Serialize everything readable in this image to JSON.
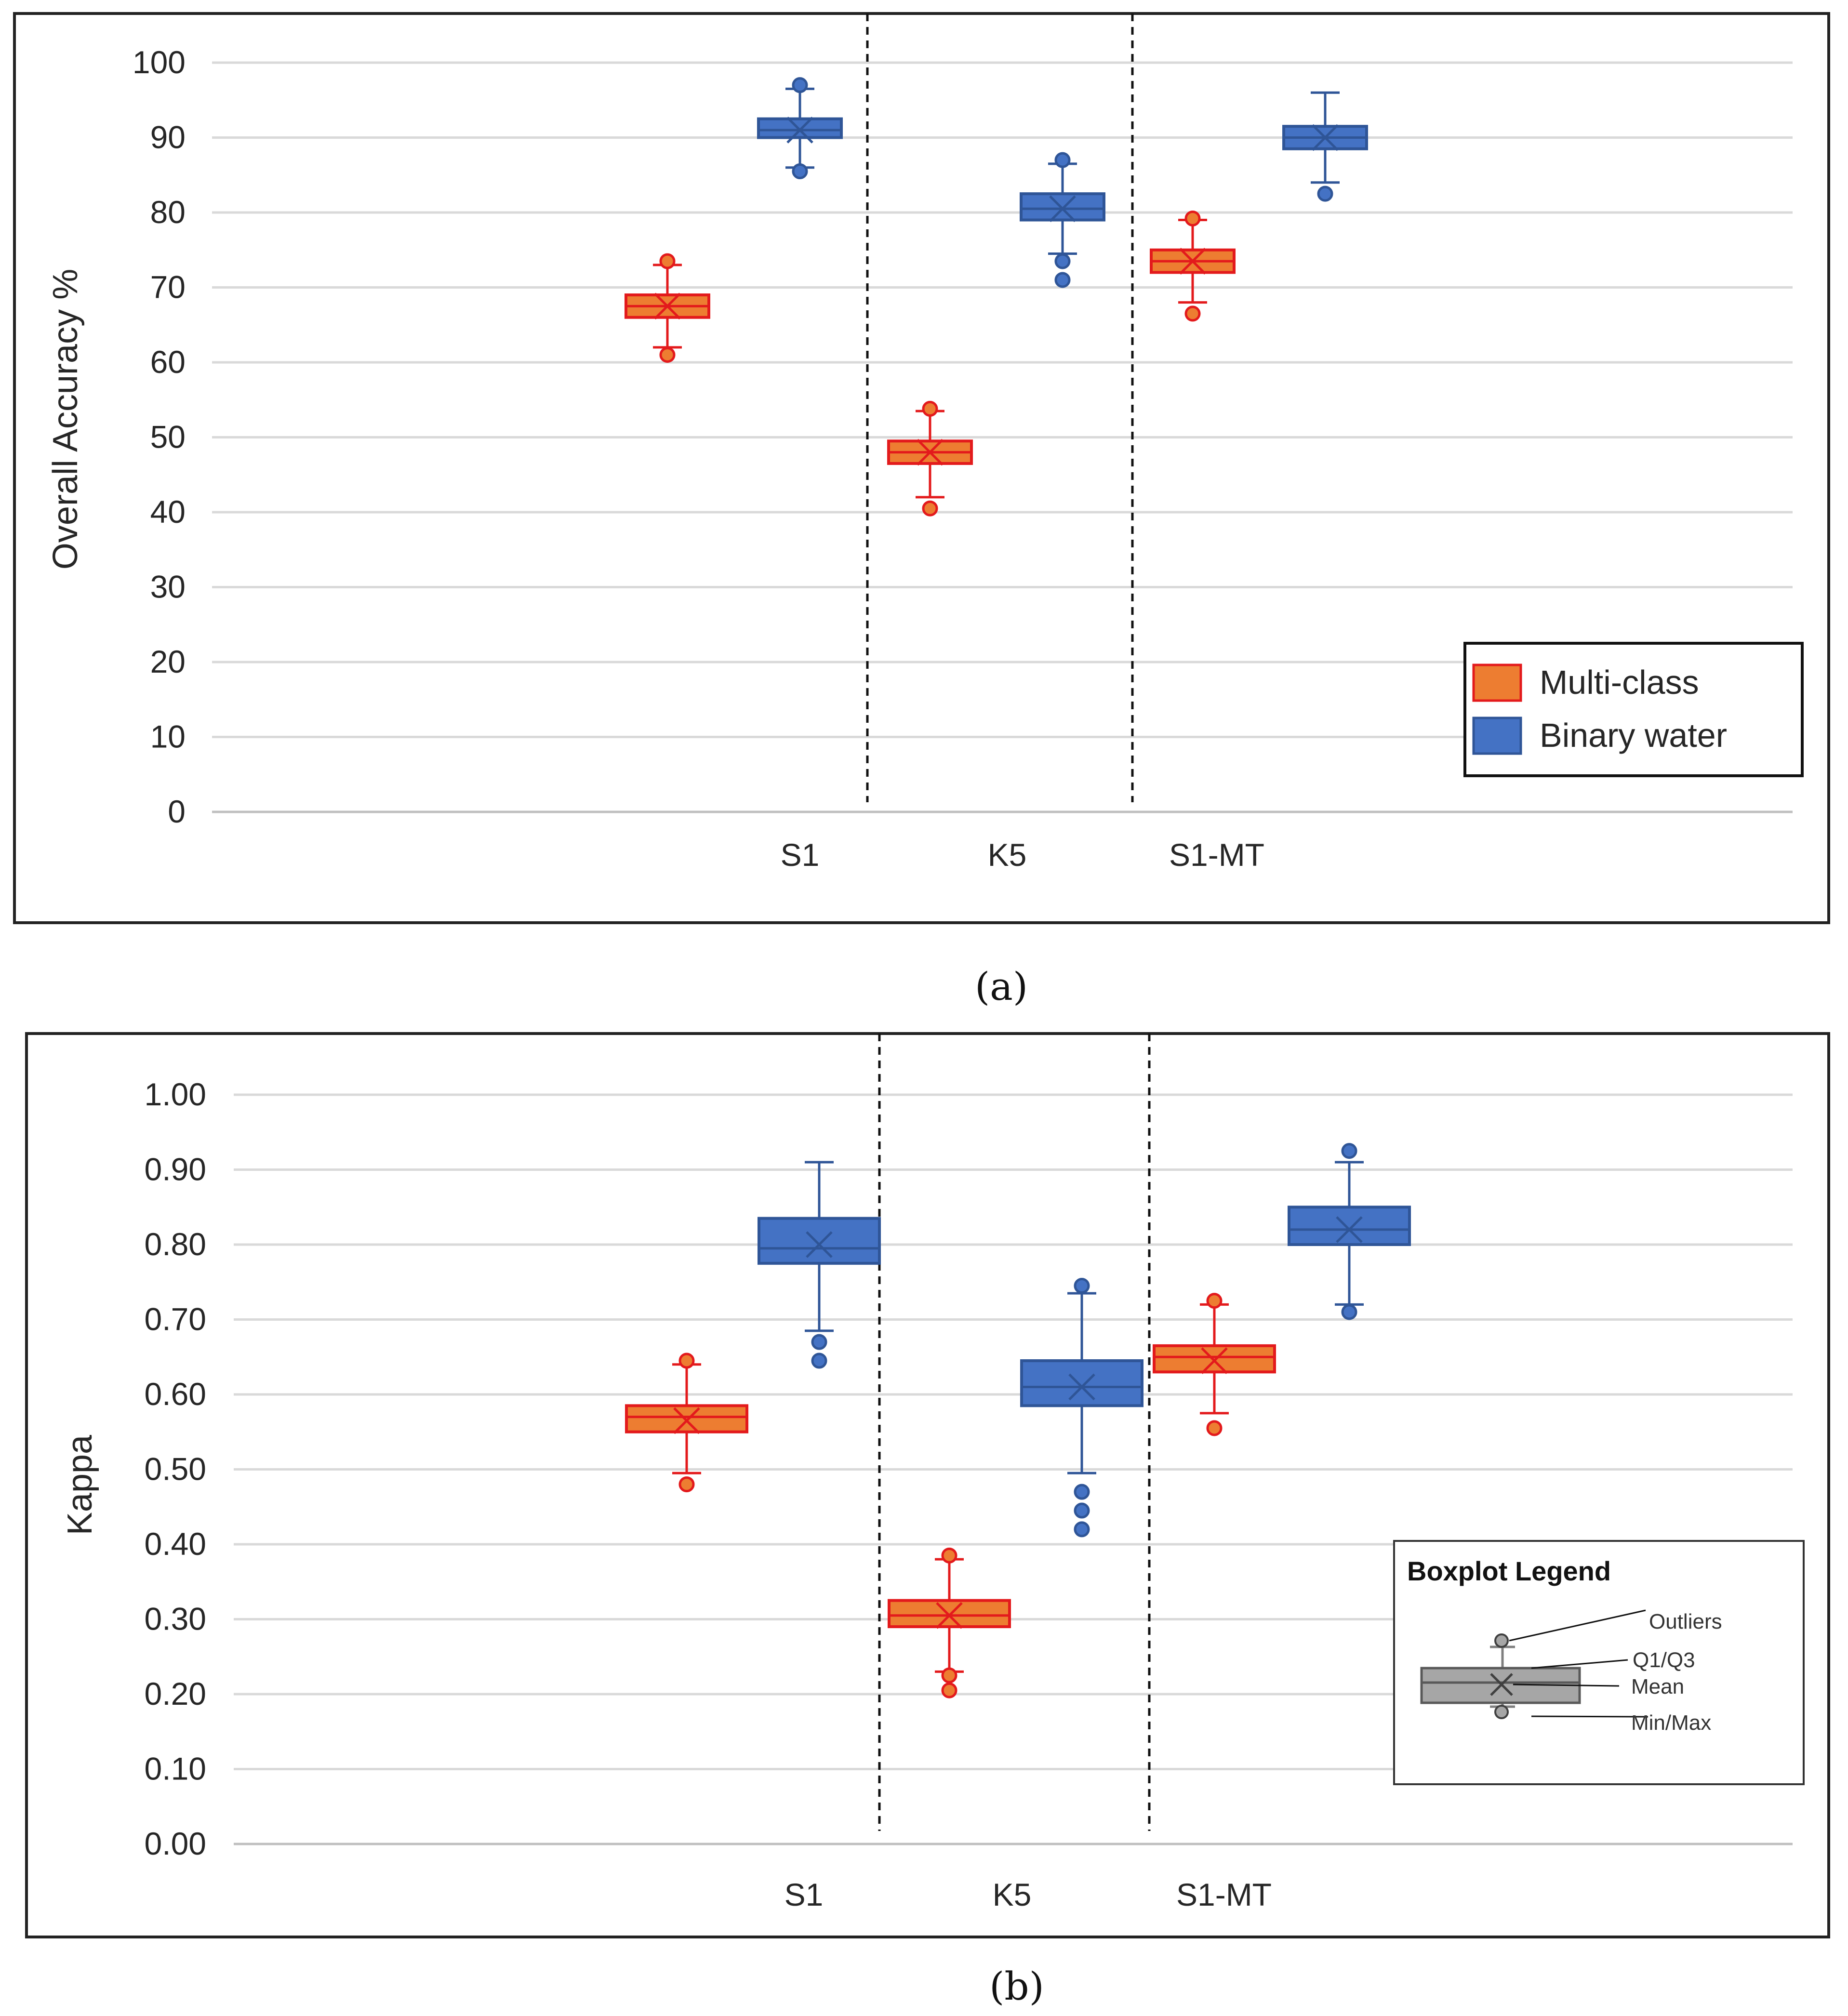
{
  "colors": {
    "multi_fill": "#ED7D31",
    "multi_stroke": "#E31A1C",
    "binary_fill": "#4472C4",
    "binary_stroke": "#2F5597",
    "grid": "#D9D9D9",
    "legend_gray": "#A6A6A6"
  },
  "chart_data": [
    {
      "type": "boxplot",
      "ylabel": "Overall Accuracy %",
      "ylim": [
        0,
        100
      ],
      "yticks": [
        0,
        10,
        20,
        30,
        40,
        50,
        60,
        70,
        80,
        90,
        100
      ],
      "ytick_labels": [
        "0",
        "10",
        "20",
        "30",
        "40",
        "50",
        "60",
        "70",
        "80",
        "90",
        "100"
      ],
      "categories": [
        "S1",
        "K5",
        "S1-MT"
      ],
      "caption": "(a)",
      "legend": [
        "Multi-class",
        "Binary water"
      ],
      "series": [
        {
          "name": "Multi-class",
          "color_key": "multi",
          "boxes": [
            {
              "category": "S1",
              "min": 62,
              "q1": 66,
              "median": 67.5,
              "q3": 69,
              "max": 73,
              "mean": 67.5,
              "outliers": [
                61,
                73.5
              ]
            },
            {
              "category": "K5",
              "min": 42,
              "q1": 46.5,
              "median": 48,
              "q3": 49.5,
              "max": 53.5,
              "mean": 48,
              "outliers": [
                40.5,
                53.8
              ]
            },
            {
              "category": "S1-MT",
              "min": 68,
              "q1": 72,
              "median": 73.5,
              "q3": 75,
              "max": 79,
              "mean": 73.5,
              "outliers": [
                66.5,
                79.2
              ]
            }
          ]
        },
        {
          "name": "Binary water",
          "color_key": "binary",
          "boxes": [
            {
              "category": "S1",
              "min": 86,
              "q1": 90,
              "median": 91,
              "q3": 92.5,
              "max": 96.5,
              "mean": 91,
              "outliers": [
                85.5,
                97
              ]
            },
            {
              "category": "K5",
              "min": 74.5,
              "q1": 79,
              "median": 80.5,
              "q3": 82.5,
              "max": 86.5,
              "mean": 80.5,
              "outliers": [
                73.5,
                71,
                87
              ]
            },
            {
              "category": "S1-MT",
              "min": 84,
              "q1": 88.5,
              "median": 90,
              "q3": 91.5,
              "max": 96,
              "mean": 90,
              "outliers": [
                82.5
              ]
            }
          ]
        }
      ]
    },
    {
      "type": "boxplot",
      "ylabel": "Kappa",
      "ylim": [
        0,
        1
      ],
      "yticks": [
        0,
        0.1,
        0.2,
        0.3,
        0.4,
        0.5,
        0.6,
        0.7,
        0.8,
        0.9,
        1.0
      ],
      "ytick_labels": [
        "0.00",
        "0.10",
        "0.20",
        "0.30",
        "0.40",
        "0.50",
        "0.60",
        "0.70",
        "0.80",
        "0.90",
        "1.00"
      ],
      "categories": [
        "S1",
        "K5",
        "S1-MT"
      ],
      "caption": "(b)",
      "legend_title": "Boxplot Legend",
      "legend_labels": [
        "Outliers",
        "Q1/Q3",
        "Mean",
        "Min/Max"
      ],
      "series": [
        {
          "name": "Multi-class",
          "color_key": "multi",
          "boxes": [
            {
              "category": "S1",
              "min": 0.495,
              "q1": 0.55,
              "median": 0.57,
              "q3": 0.585,
              "max": 0.64,
              "mean": 0.565,
              "outliers": [
                0.48,
                0.645
              ]
            },
            {
              "category": "K5",
              "min": 0.23,
              "q1": 0.29,
              "median": 0.305,
              "q3": 0.325,
              "max": 0.38,
              "mean": 0.305,
              "outliers": [
                0.205,
                0.225,
                0.385
              ]
            },
            {
              "category": "S1-MT",
              "min": 0.575,
              "q1": 0.63,
              "median": 0.65,
              "q3": 0.665,
              "max": 0.72,
              "mean": 0.645,
              "outliers": [
                0.555,
                0.725
              ]
            }
          ]
        },
        {
          "name": "Binary water",
          "color_key": "binary",
          "boxes": [
            {
              "category": "S1",
              "min": 0.685,
              "q1": 0.775,
              "median": 0.795,
              "q3": 0.835,
              "max": 0.91,
              "mean": 0.8,
              "outliers": [
                0.645,
                0.67
              ]
            },
            {
              "category": "K5",
              "min": 0.495,
              "q1": 0.585,
              "median": 0.61,
              "q3": 0.645,
              "max": 0.735,
              "mean": 0.61,
              "outliers": [
                0.42,
                0.445,
                0.47,
                0.745
              ]
            },
            {
              "category": "S1-MT",
              "min": 0.72,
              "q1": 0.8,
              "median": 0.82,
              "q3": 0.85,
              "max": 0.91,
              "mean": 0.82,
              "outliers": [
                0.71,
                0.925
              ]
            }
          ]
        }
      ]
    }
  ]
}
